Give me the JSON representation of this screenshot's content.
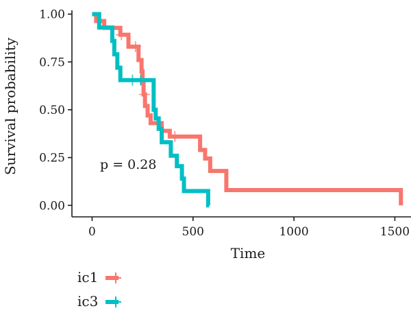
{
  "chart_data": {
    "type": "line",
    "title": "",
    "xlabel": "Time",
    "ylabel": "Survival probability",
    "xlim": [
      -100,
      1580
    ],
    "ylim": [
      -0.06,
      1.02
    ],
    "xticks": [
      0,
      500,
      1000,
      1500
    ],
    "xtick_labels": [
      "0",
      "500",
      "1000",
      "1500"
    ],
    "yticks": [
      0.0,
      0.25,
      0.5,
      0.75,
      1.0
    ],
    "ytick_labels": [
      "0.00",
      "0.25",
      "0.50",
      "0.75",
      "1.00"
    ],
    "grid": false,
    "legend_position": "bottom-left",
    "annotation": "p = 0.28",
    "series": [
      {
        "name": "ic1",
        "color": "#F8766D",
        "steps": [
          [
            0,
            1.0
          ],
          [
            20,
            0.964
          ],
          [
            60,
            0.928
          ],
          [
            140,
            0.892
          ],
          [
            180,
            0.83
          ],
          [
            230,
            0.76
          ],
          [
            245,
            0.7
          ],
          [
            250,
            0.64
          ],
          [
            255,
            0.58
          ],
          [
            262,
            0.52
          ],
          [
            275,
            0.47
          ],
          [
            290,
            0.43
          ],
          [
            345,
            0.39
          ],
          [
            385,
            0.36
          ],
          [
            535,
            0.29
          ],
          [
            560,
            0.245
          ],
          [
            585,
            0.18
          ],
          [
            665,
            0.08
          ],
          [
            1520,
            0.08
          ],
          [
            1530,
            0.0
          ]
        ],
        "end_x": 1530,
        "censor_times": [
          145,
          215,
          260,
          410
        ]
      },
      {
        "name": "ic3",
        "color": "#00BFC4",
        "steps": [
          [
            0,
            1.0
          ],
          [
            35,
            0.93
          ],
          [
            100,
            0.86
          ],
          [
            110,
            0.79
          ],
          [
            125,
            0.72
          ],
          [
            140,
            0.655
          ],
          [
            305,
            0.5
          ],
          [
            315,
            0.455
          ],
          [
            330,
            0.4
          ],
          [
            345,
            0.33
          ],
          [
            390,
            0.26
          ],
          [
            420,
            0.205
          ],
          [
            445,
            0.14
          ],
          [
            455,
            0.075
          ],
          [
            575,
            0.0
          ]
        ],
        "end_x": 580,
        "censor_times": [
          200,
          240
        ]
      }
    ]
  },
  "legend": {
    "items": [
      {
        "label": "ic1",
        "color": "#F8766D"
      },
      {
        "label": "ic3",
        "color": "#00BFC4"
      }
    ]
  }
}
